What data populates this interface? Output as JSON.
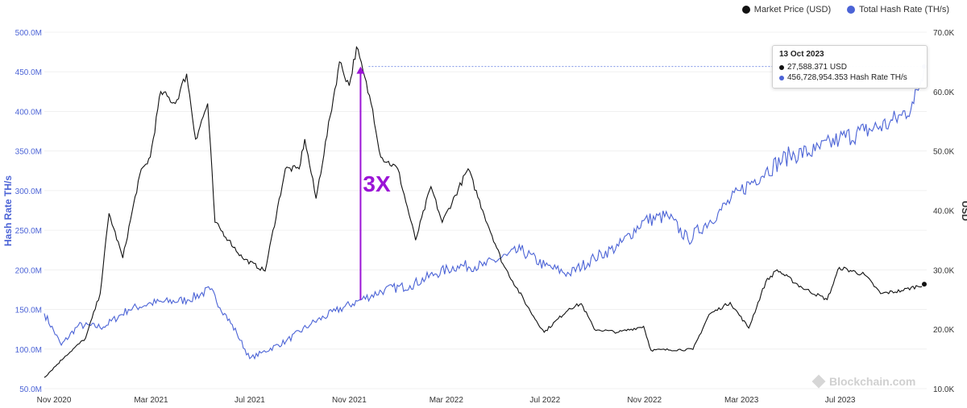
{
  "legend": {
    "price_label": "Market Price (USD)",
    "hash_label": "Total Hash Rate (TH/s)"
  },
  "y_left_title": "Hash Rate TH/s",
  "y_right_title": "USD",
  "annotation": "3X",
  "watermark": "Blockchain.com",
  "tooltip": {
    "date": "13 Oct 2023",
    "price": "27,588.371 USD",
    "hash": "456,728,954.353 Hash Rate TH/s"
  },
  "colors": {
    "price": "#111111",
    "hash": "#4b63d6",
    "annotation": "#9b14d6",
    "grid": "#f0f0f0"
  },
  "chart_data": {
    "type": "line",
    "x_tick_labels": [
      "Nov 2020",
      "Mar 2021",
      "Jul 2021",
      "Nov 2021",
      "Mar 2022",
      "Jul 2022",
      "Nov 2022",
      "Mar 2023",
      "Jul 2023"
    ],
    "y_left": {
      "title": "Hash Rate TH/s",
      "ylim": [
        50000000,
        500000000
      ],
      "tick_values": [
        50000000,
        100000000,
        150000000,
        200000000,
        250000000,
        300000000,
        350000000,
        400000000,
        450000000,
        500000000
      ],
      "tick_labels": [
        "50.0M",
        "100.0M",
        "150.0M",
        "200.0M",
        "250.0M",
        "300.0M",
        "350.0M",
        "400.0M",
        "450.0M",
        "500.0M"
      ]
    },
    "y_right": {
      "title": "USD",
      "ylim": [
        10000,
        70000
      ],
      "tick_values": [
        10000,
        20000,
        30000,
        40000,
        50000,
        60000,
        70000
      ],
      "tick_labels": [
        "10.0K",
        "20.0K",
        "30.0K",
        "40.0K",
        "50.0K",
        "60.0K",
        "70.0K"
      ]
    },
    "series": [
      {
        "name": "Market Price (USD)",
        "axis": "right",
        "points": [
          [
            "2020-10-20",
            11900
          ],
          [
            "2020-11-15",
            15500
          ],
          [
            "2020-12-10",
            18500
          ],
          [
            "2020-12-28",
            26000
          ],
          [
            "2021-01-08",
            39500
          ],
          [
            "2021-01-25",
            32000
          ],
          [
            "2021-02-15",
            46000
          ],
          [
            "2021-02-28",
            49000
          ],
          [
            "2021-03-13",
            60000
          ],
          [
            "2021-03-31",
            58000
          ],
          [
            "2021-04-14",
            63000
          ],
          [
            "2021-04-25",
            52000
          ],
          [
            "2021-05-10",
            58000
          ],
          [
            "2021-05-19",
            38000
          ],
          [
            "2021-06-05",
            35000
          ],
          [
            "2021-06-22",
            32000
          ],
          [
            "2021-07-20",
            29800
          ],
          [
            "2021-08-14",
            47000
          ],
          [
            "2021-08-31",
            47000
          ],
          [
            "2021-09-07",
            52000
          ],
          [
            "2021-09-21",
            42000
          ],
          [
            "2021-10-20",
            65000
          ],
          [
            "2021-11-01",
            61000
          ],
          [
            "2021-11-10",
            67500
          ],
          [
            "2021-11-30",
            57000
          ],
          [
            "2021-12-10",
            49000
          ],
          [
            "2021-12-31",
            47000
          ],
          [
            "2022-01-22",
            35000
          ],
          [
            "2022-02-10",
            44000
          ],
          [
            "2022-02-24",
            38000
          ],
          [
            "2022-03-28",
            47000
          ],
          [
            "2022-04-15",
            40000
          ],
          [
            "2022-05-10",
            31000
          ],
          [
            "2022-06-13",
            23000
          ],
          [
            "2022-06-30",
            19500
          ],
          [
            "2022-07-31",
            23500
          ],
          [
            "2022-08-15",
            24300
          ],
          [
            "2022-08-31",
            20000
          ],
          [
            "2022-09-30",
            19500
          ],
          [
            "2022-10-31",
            20500
          ],
          [
            "2022-11-09",
            16500
          ],
          [
            "2022-12-31",
            16600
          ],
          [
            "2023-01-20",
            22500
          ],
          [
            "2023-02-15",
            24500
          ],
          [
            "2023-03-10",
            20200
          ],
          [
            "2023-03-31",
            28000
          ],
          [
            "2023-04-14",
            30000
          ],
          [
            "2023-05-15",
            27000
          ],
          [
            "2023-06-15",
            25000
          ],
          [
            "2023-06-30",
            30400
          ],
          [
            "2023-07-31",
            29200
          ],
          [
            "2023-08-20",
            26000
          ],
          [
            "2023-09-15",
            26500
          ],
          [
            "2023-10-13",
            27588
          ]
        ]
      },
      {
        "name": "Total Hash Rate (TH/s)",
        "axis": "left",
        "points": [
          [
            "2020-10-20",
            145000000
          ],
          [
            "2020-11-10",
            105000000
          ],
          [
            "2020-12-01",
            130000000
          ],
          [
            "2021-01-01",
            128000000
          ],
          [
            "2021-02-01",
            150000000
          ],
          [
            "2021-03-01",
            158000000
          ],
          [
            "2021-04-15",
            162000000
          ],
          [
            "2021-05-13",
            175000000
          ],
          [
            "2021-05-31",
            145000000
          ],
          [
            "2021-06-15",
            120000000
          ],
          [
            "2021-07-01",
            88000000
          ],
          [
            "2021-07-15",
            95000000
          ],
          [
            "2021-08-15",
            110000000
          ],
          [
            "2021-09-15",
            132000000
          ],
          [
            "2021-10-15",
            148000000
          ],
          [
            "2021-11-15",
            162000000
          ],
          [
            "2021-12-15",
            175000000
          ],
          [
            "2022-01-15",
            180000000
          ],
          [
            "2022-02-15",
            195000000
          ],
          [
            "2022-03-15",
            205000000
          ],
          [
            "2022-04-15",
            205000000
          ],
          [
            "2022-05-15",
            218000000
          ],
          [
            "2022-06-01",
            225000000
          ],
          [
            "2022-07-01",
            205000000
          ],
          [
            "2022-07-31",
            195000000
          ],
          [
            "2022-08-31",
            215000000
          ],
          [
            "2022-09-30",
            230000000
          ],
          [
            "2022-10-31",
            262000000
          ],
          [
            "2022-11-30",
            268000000
          ],
          [
            "2022-12-25",
            238000000
          ],
          [
            "2023-01-31",
            272000000
          ],
          [
            "2023-02-28",
            300000000
          ],
          [
            "2023-03-31",
            325000000
          ],
          [
            "2023-04-30",
            345000000
          ],
          [
            "2023-05-31",
            350000000
          ],
          [
            "2023-06-30",
            365000000
          ],
          [
            "2023-07-31",
            375000000
          ],
          [
            "2023-08-31",
            385000000
          ],
          [
            "2023-09-15",
            395000000
          ],
          [
            "2023-09-30",
            410000000
          ],
          [
            "2023-10-13",
            456728954
          ]
        ]
      }
    ],
    "annotation": {
      "text": "3X",
      "x": "2021-11-15",
      "from": 162000000,
      "to": 456728954
    },
    "grid": true,
    "legend_position": "top-right"
  }
}
